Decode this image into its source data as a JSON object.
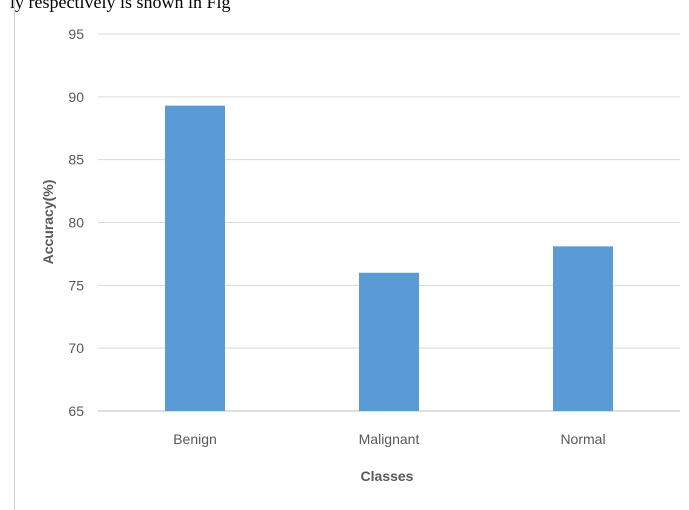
{
  "caption_fragment": "ly respectively is shown in Fig",
  "chart_data": {
    "type": "bar",
    "categories": [
      "Benign",
      "Malignant",
      "Normal"
    ],
    "values": [
      89.3,
      76.0,
      78.1
    ],
    "xlabel": "Classes",
    "ylabel": "Accuracy(%)",
    "ylim": [
      65,
      95
    ],
    "yticks": [
      65,
      70,
      75,
      80,
      85,
      90,
      95
    ],
    "grid": true,
    "bar_color": "#5b9bd5",
    "grid_color": "#d9d9d9"
  }
}
